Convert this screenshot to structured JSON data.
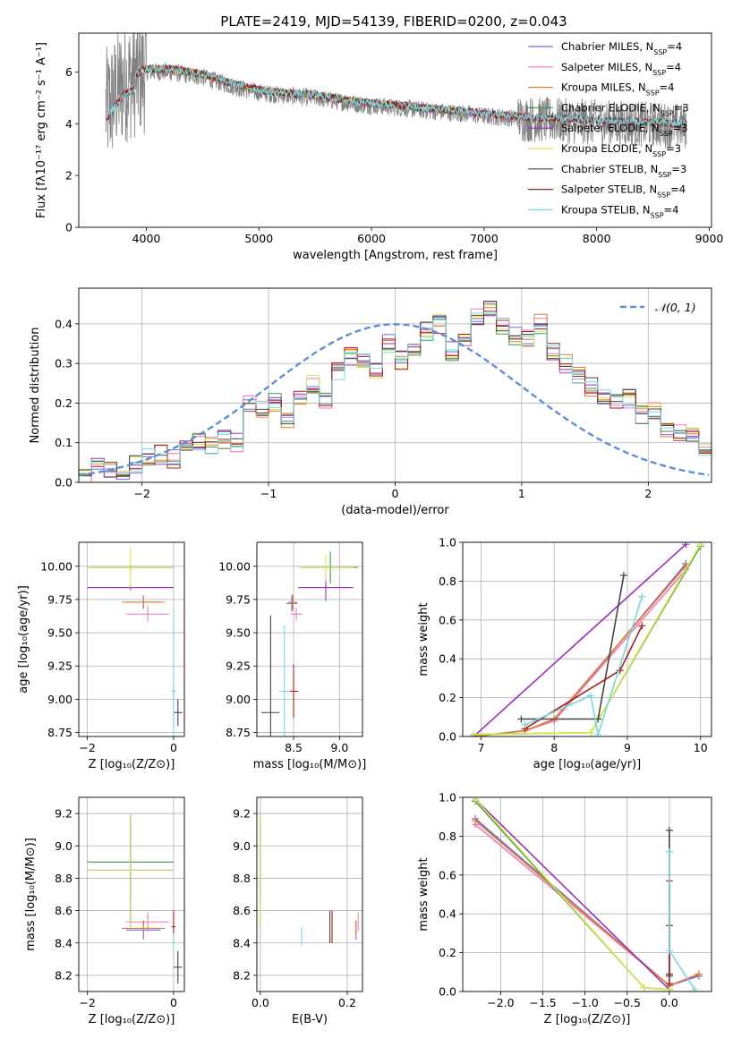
{
  "figure_title": "PLATE=2419, MJD=54139, FIBERID=0200, z=0.043",
  "colors": {
    "Chabrier MILES": "#6a6ee0",
    "Salpeter MILES": "#f07ab4",
    "Kroupa MILES": "#e07c30",
    "Chabrier ELODIE": "#3e9a4c",
    "Salpeter ELODIE": "#9a2ec0",
    "Kroupa ELODIE": "#d6e84a",
    "Chabrier STELIB": "#444444",
    "Salpeter STELIB": "#a81c1c",
    "Kroupa STELIB": "#78d8dc",
    "data": "#808080",
    "normal": "#5b8fd9"
  },
  "chart_data": [
    {
      "id": "spectrum",
      "type": "line",
      "title": "PLATE=2419, MJD=54139, FIBERID=0200, z=0.043",
      "xlabel": "wavelength [Angstrom, rest frame]",
      "ylabel": "Flux [fλ10⁻¹⁷ erg cm⁻² s⁻¹ A⁻¹]",
      "xlim": [
        3400,
        9020
      ],
      "ylim": [
        0,
        7.5
      ],
      "xticks": [
        4000,
        5000,
        6000,
        7000,
        8000,
        9000
      ],
      "yticks": [
        0,
        2,
        4,
        6
      ],
      "legend_position": "right",
      "legend_labels": [
        "Chabrier MILES, N_SSP=4",
        "Salpeter MILES, N_SSP=4",
        "Kroupa MILES, N_SSP=4",
        "Chabrier ELODIE, N_SSP=3",
        "Salpeter ELODIE, N_SSP=3",
        "Kroupa ELODIE, N_SSP=3",
        "Chabrier STELIB, N_SSP=3",
        "Salpeter STELIB, N_SSP=4",
        "Kroupa STELIB, N_SSP=4"
      ],
      "legend_prefixes": [
        "Chabrier MILES, N",
        "Salpeter MILES, N",
        "Kroupa MILES, N",
        "Chabrier ELODIE, N",
        "Salpeter ELODIE, N",
        "Kroupa ELODIE, N",
        "Chabrier STELIB, N",
        "Salpeter STELIB, N",
        "Kroupa STELIB, N"
      ],
      "legend_values": [
        "=4",
        "=4",
        "=4",
        "=3",
        "=3",
        "=3",
        "=3",
        "=4",
        "=4"
      ],
      "data_x": [
        3650,
        3800,
        4000,
        4200,
        4500,
        4800,
        5000,
        5200,
        5500,
        5800,
        6000,
        6300,
        6500,
        6800,
        7000,
        7300,
        7500,
        7800,
        8000,
        8300,
        8600,
        8800
      ],
      "data_y": [
        4.6,
        5.6,
        6.0,
        6.0,
        5.8,
        5.4,
        5.2,
        5.1,
        5.0,
        4.8,
        4.7,
        4.6,
        4.5,
        4.4,
        4.3,
        4.2,
        4.15,
        4.1,
        4.05,
        4.0,
        3.95,
        3.9
      ]
    },
    {
      "id": "residual_hist",
      "type": "area",
      "xlabel": "(data-model)/error",
      "ylabel": "Normed distribution",
      "xlim": [
        -2.5,
        2.5
      ],
      "ylim": [
        0,
        0.49
      ],
      "xticks": [
        -2,
        -1,
        0,
        1,
        2
      ],
      "yticks": [
        0.0,
        0.1,
        0.2,
        0.3,
        0.4
      ],
      "grid": true,
      "legend_position": "top-right",
      "legend_label": "𝒩(0, 1)",
      "bin_width": 0.1,
      "bin_start": -2.5,
      "reference_heights": [
        0.02,
        0.04,
        0.035,
        0.03,
        0.045,
        0.06,
        0.07,
        0.06,
        0.08,
        0.1,
        0.09,
        0.11,
        0.1,
        0.2,
        0.18,
        0.2,
        0.15,
        0.22,
        0.25,
        0.2,
        0.28,
        0.32,
        0.3,
        0.28,
        0.35,
        0.31,
        0.33,
        0.38,
        0.4,
        0.33,
        0.36,
        0.42,
        0.44,
        0.39,
        0.37,
        0.36,
        0.4,
        0.33,
        0.3,
        0.27,
        0.24,
        0.22,
        0.2,
        0.21,
        0.17,
        0.18,
        0.14,
        0.13,
        0.12,
        0.09,
        0.1,
        0.08,
        0.07,
        0.05,
        0.06,
        0.05,
        0.045,
        0.04,
        0.03,
        0.035
      ]
    },
    {
      "id": "age_vs_Z",
      "type": "scatter",
      "xlabel": "Z [log₁₀(Z/Z⊙)]",
      "ylabel": "age  [log₁₀(age/yr)]",
      "xlim": [
        -2.2,
        0.25
      ],
      "ylim": [
        8.72,
        10.18
      ],
      "xticks": [
        -2,
        0
      ],
      "yticks": [
        8.75,
        9.0,
        9.25,
        9.5,
        9.75,
        10.0
      ],
      "grid": true,
      "points": [
        {
          "model": "Chabrier MILES",
          "x": -0.7,
          "y": 9.73,
          "xerr": 0.4,
          "yerr": 0.05
        },
        {
          "model": "Salpeter MILES",
          "x": -0.6,
          "y": 9.64,
          "xerr": 0.5,
          "yerr": 0.06
        },
        {
          "model": "Kroupa MILES",
          "x": -0.7,
          "y": 9.73,
          "xerr": 0.5,
          "yerr": 0.05
        },
        {
          "model": "Chabrier ELODIE",
          "x": -1.0,
          "y": 9.99,
          "xerr": 1.0,
          "yerr": 0.02
        },
        {
          "model": "Salpeter ELODIE",
          "x": -1.0,
          "y": 9.84,
          "xerr": 1.0,
          "yerr": 0.02
        },
        {
          "model": "Kroupa ELODIE",
          "x": -1.0,
          "y": 9.99,
          "xerr": 1.0,
          "yerr": 0.15
        },
        {
          "model": "Chabrier STELIB",
          "x": 0.1,
          "y": 8.9,
          "xerr": 0.1,
          "yerr": 0.1
        },
        {
          "model": "Salpeter STELIB",
          "x": 0.0,
          "y": 9.06,
          "xerr": 0.05,
          "yerr": 0.06
        },
        {
          "model": "Kroupa STELIB",
          "x": 0.0,
          "y": 9.06,
          "xerr": 0.05,
          "yerr": 0.6
        }
      ]
    },
    {
      "id": "age_vs_mass",
      "type": "scatter",
      "xlabel": "mass [log₁₀(M/M⊙)]",
      "ylabel": "",
      "xlim": [
        8.1,
        9.25
      ],
      "ylim": [
        8.72,
        10.18
      ],
      "xticks": [
        8.5,
        9.0
      ],
      "yticks": [
        8.75,
        9.0,
        9.25,
        9.5,
        9.75,
        10.0
      ],
      "grid": true,
      "points": [
        {
          "model": "Chabrier MILES",
          "x": 8.48,
          "y": 9.72,
          "xerr": 0.06,
          "yerr": 0.06
        },
        {
          "model": "Salpeter MILES",
          "x": 8.53,
          "y": 9.64,
          "xerr": 0.06,
          "yerr": 0.05
        },
        {
          "model": "Kroupa MILES",
          "x": 8.49,
          "y": 9.73,
          "xerr": 0.05,
          "yerr": 0.06
        },
        {
          "model": "Chabrier ELODIE",
          "x": 8.9,
          "y": 9.99,
          "xerr": 0.3,
          "yerr": 0.12
        },
        {
          "model": "Salpeter ELODIE",
          "x": 8.85,
          "y": 9.84,
          "xerr": 0.3,
          "yerr": 0.1
        },
        {
          "model": "Kroupa ELODIE",
          "x": 8.85,
          "y": 9.99,
          "xerr": 0.3,
          "yerr": 0.1
        },
        {
          "model": "Chabrier STELIB",
          "x": 8.25,
          "y": 8.9,
          "xerr": 0.1,
          "yerr": 0.73
        },
        {
          "model": "Salpeter STELIB",
          "x": 8.5,
          "y": 9.06,
          "xerr": 0.05,
          "yerr": 0.2
        },
        {
          "model": "Kroupa STELIB",
          "x": 8.4,
          "y": 9.06,
          "xerr": 0.06,
          "yerr": 0.5
        }
      ]
    },
    {
      "id": "weight_vs_age",
      "type": "line",
      "xlabel": "age  [log₁₀(age/yr)]",
      "ylabel": "mass weight",
      "xlim": [
        6.75,
        10.15
      ],
      "ylim": [
        0,
        1.0
      ],
      "xticks": [
        7,
        8,
        9,
        10
      ],
      "yticks": [
        0.0,
        0.2,
        0.4,
        0.6,
        0.8,
        1.0
      ],
      "grid": true,
      "series": [
        {
          "model": "Chabrier MILES",
          "x": [
            6.9,
            7.6,
            8.0,
            9.8
          ],
          "y": [
            0.0,
            0.03,
            0.08,
            0.89
          ]
        },
        {
          "model": "Salpeter MILES",
          "x": [
            6.9,
            7.6,
            8.0,
            9.8
          ],
          "y": [
            0.0,
            0.03,
            0.08,
            0.86
          ]
        },
        {
          "model": "Kroupa MILES",
          "x": [
            6.9,
            7.6,
            8.0,
            9.8
          ],
          "y": [
            0.0,
            0.03,
            0.09,
            0.88
          ]
        },
        {
          "model": "Chabrier ELODIE",
          "x": [
            6.9,
            8.5,
            10.0
          ],
          "y": [
            0.01,
            0.02,
            0.98
          ]
        },
        {
          "model": "Salpeter ELODIE",
          "x": [
            6.9,
            9.8
          ],
          "y": [
            0.0,
            0.99
          ]
        },
        {
          "model": "Kroupa ELODIE",
          "x": [
            6.9,
            8.5,
            10.0
          ],
          "y": [
            0.01,
            0.02,
            0.99
          ]
        },
        {
          "model": "Chabrier STELIB",
          "x": [
            7.55,
            8.6,
            8.95
          ],
          "y": [
            0.09,
            0.09,
            0.83
          ]
        },
        {
          "model": "Salpeter STELIB",
          "x": [
            7.6,
            8.9,
            9.2
          ],
          "y": [
            0.04,
            0.34,
            0.57
          ]
        },
        {
          "model": "Kroupa STELIB",
          "x": [
            7.6,
            8.5,
            8.6,
            9.2
          ],
          "y": [
            0.06,
            0.21,
            0.01,
            0.72
          ]
        }
      ]
    },
    {
      "id": "mass_vs_Z",
      "type": "scatter",
      "xlabel": "Z [log₁₀(Z/Z⊙)]",
      "ylabel": "mass [log₁₀(M/M⊙)]",
      "xlim": [
        -2.2,
        0.25
      ],
      "ylim": [
        8.1,
        9.3
      ],
      "xticks": [
        -2,
        0
      ],
      "yticks": [
        8.2,
        8.4,
        8.6,
        8.8,
        9.0,
        9.2
      ],
      "grid": true,
      "points": [
        {
          "model": "Chabrier MILES",
          "x": -0.7,
          "y": 8.48,
          "xerr": 0.4,
          "yerr": 0.06
        },
        {
          "model": "Salpeter MILES",
          "x": -0.6,
          "y": 8.53,
          "xerr": 0.5,
          "yerr": 0.06
        },
        {
          "model": "Kroupa MILES",
          "x": -0.7,
          "y": 8.49,
          "xerr": 0.5,
          "yerr": 0.05
        },
        {
          "model": "Chabrier ELODIE",
          "x": -1.0,
          "y": 8.9,
          "xerr": 1.0,
          "yerr": 0.25
        },
        {
          "model": "Salpeter ELODIE",
          "x": -1.0,
          "y": 8.85,
          "xerr": 1.0,
          "yerr": 0.35
        },
        {
          "model": "Kroupa ELODIE",
          "x": -1.0,
          "y": 8.85,
          "xerr": 1.0,
          "yerr": 0.35
        },
        {
          "model": "Chabrier STELIB",
          "x": 0.1,
          "y": 8.25,
          "xerr": 0.1,
          "yerr": 0.1
        },
        {
          "model": "Salpeter STELIB",
          "x": 0.0,
          "y": 8.5,
          "xerr": 0.05,
          "yerr": 0.1
        },
        {
          "model": "Kroupa STELIB",
          "x": 0.0,
          "y": 8.4,
          "xerr": 0.05,
          "yerr": 0.06
        }
      ]
    },
    {
      "id": "mass_vs_EBV",
      "type": "scatter",
      "xlabel": "E(B-V)",
      "ylabel": "",
      "xlim": [
        -0.008,
        0.235
      ],
      "ylim": [
        8.1,
        9.3
      ],
      "xticks": [
        0.0,
        0.2
      ],
      "yticks": [
        8.2,
        8.4,
        8.6,
        8.8,
        9.0,
        9.2
      ],
      "grid": true,
      "points": [
        {
          "model": "Chabrier MILES",
          "x": 0.22,
          "y": 8.48,
          "yerr": 0.06
        },
        {
          "model": "Salpeter MILES",
          "x": 0.225,
          "y": 8.53,
          "yerr": 0.06
        },
        {
          "model": "Kroupa MILES",
          "x": 0.22,
          "y": 8.49,
          "yerr": 0.05
        },
        {
          "model": "Chabrier ELODIE",
          "x": 0.0,
          "y": 8.9,
          "yerr": 0.25
        },
        {
          "model": "Salpeter ELODIE",
          "x": 0.0,
          "y": 8.85,
          "yerr": 0.35
        },
        {
          "model": "Kroupa ELODIE",
          "x": 0.0,
          "y": 8.85,
          "yerr": 0.35
        },
        {
          "model": "Chabrier STELIB",
          "x": 0.16,
          "y": 8.5,
          "yerr": 0.1
        },
        {
          "model": "Salpeter STELIB",
          "x": 0.165,
          "y": 8.5,
          "yerr": 0.1
        },
        {
          "model": "Kroupa STELIB",
          "x": 0.095,
          "y": 8.44,
          "yerr": 0.06
        }
      ]
    },
    {
      "id": "weight_vs_Z",
      "type": "line",
      "xlabel": "Z [log₁₀(Z/Z⊙)]",
      "ylabel": "mass weight",
      "xlim": [
        -2.45,
        0.5
      ],
      "ylim": [
        0,
        1.0
      ],
      "xticks": [
        -2.0,
        -1.5,
        -1.0,
        -0.5,
        0.0
      ],
      "yticks": [
        0.0,
        0.2,
        0.4,
        0.6,
        0.8,
        1.0
      ],
      "grid": true,
      "series": [
        {
          "model": "Chabrier MILES",
          "x": [
            -2.3,
            0.0,
            0.35
          ],
          "y": [
            0.89,
            0.03,
            0.08
          ]
        },
        {
          "model": "Salpeter MILES",
          "x": [
            -2.3,
            0.0,
            0.35
          ],
          "y": [
            0.86,
            0.03,
            0.09
          ]
        },
        {
          "model": "Kroupa MILES",
          "x": [
            -2.3,
            0.0,
            0.35
          ],
          "y": [
            0.88,
            0.03,
            0.09
          ]
        },
        {
          "model": "Chabrier ELODIE",
          "x": [
            -2.3,
            -0.3,
            0.0
          ],
          "y": [
            0.98,
            0.02,
            0.01
          ]
        },
        {
          "model": "Salpeter ELODIE",
          "x": [
            -2.3,
            0.0
          ],
          "y": [
            0.99,
            0.01
          ]
        },
        {
          "model": "Kroupa ELODIE",
          "x": [
            -2.3,
            -0.3,
            0.0
          ],
          "y": [
            0.99,
            0.02,
            0.01
          ]
        },
        {
          "model": "Chabrier STELIB",
          "x": [
            0.0,
            0.0,
            0.0
          ],
          "y": [
            0.83,
            0.09,
            0.08
          ]
        },
        {
          "model": "Salpeter STELIB",
          "x": [
            0.0,
            0.0,
            0.0
          ],
          "y": [
            0.57,
            0.34,
            0.04
          ]
        },
        {
          "model": "Kroupa STELIB",
          "x": [
            0.0,
            0.0,
            0.3
          ],
          "y": [
            0.72,
            0.21,
            0.01
          ]
        }
      ]
    }
  ]
}
